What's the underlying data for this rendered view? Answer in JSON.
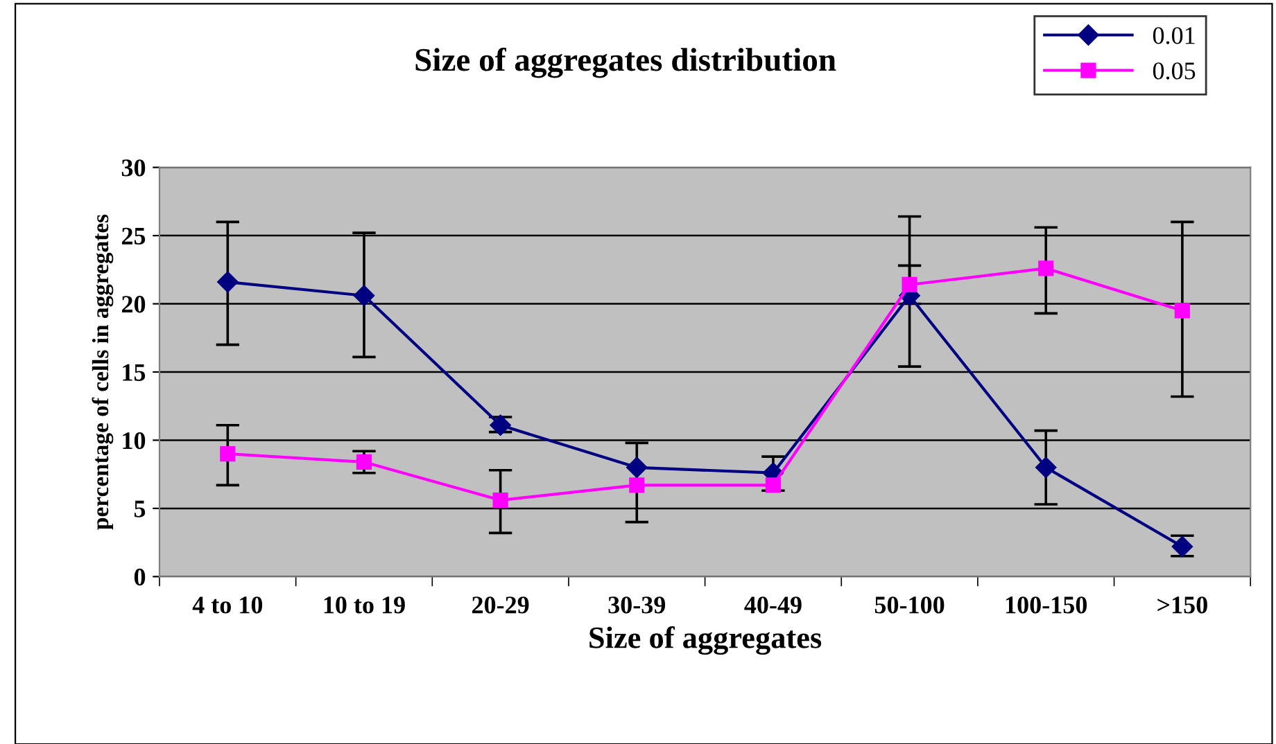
{
  "chart_data": {
    "type": "line",
    "title": "Size of aggregates distribution",
    "xlabel": "Size of aggregates",
    "ylabel": "percentage of cells in aggregates",
    "categories": [
      "4 to 10",
      "10 to 19",
      "20-29",
      "30-39",
      "40-49",
      "50-100",
      "100-150",
      ">150"
    ],
    "series": [
      {
        "name": "0.01",
        "color": "#000080",
        "marker": "diamond",
        "values": [
          21.6,
          20.6,
          11.1,
          8.0,
          7.6,
          20.6,
          8.0,
          2.2
        ],
        "errors": [
          [
            17.0,
            26.0
          ],
          [
            16.1,
            25.2
          ],
          [
            10.6,
            11.7
          ],
          [
            4.0,
            9.8
          ],
          [
            6.3,
            8.8
          ],
          [
            15.4,
            26.4
          ],
          [
            5.3,
            10.7
          ],
          [
            1.5,
            3.0
          ]
        ]
      },
      {
        "name": "0.05",
        "color": "#ff00ff",
        "marker": "square",
        "values": [
          9.0,
          8.4,
          5.6,
          6.7,
          6.7,
          21.4,
          22.6,
          19.5
        ],
        "errors": [
          [
            6.7,
            11.1
          ],
          [
            7.6,
            9.2
          ],
          [
            3.2,
            7.8
          ],
          null,
          null,
          [
            20.0,
            22.8
          ],
          [
            19.3,
            25.6
          ],
          [
            13.2,
            26.0
          ]
        ]
      }
    ],
    "ylim": [
      0,
      30
    ],
    "yticks": [
      0,
      5,
      10,
      15,
      20,
      25,
      30
    ],
    "grid": "y",
    "legend": "top right"
  }
}
